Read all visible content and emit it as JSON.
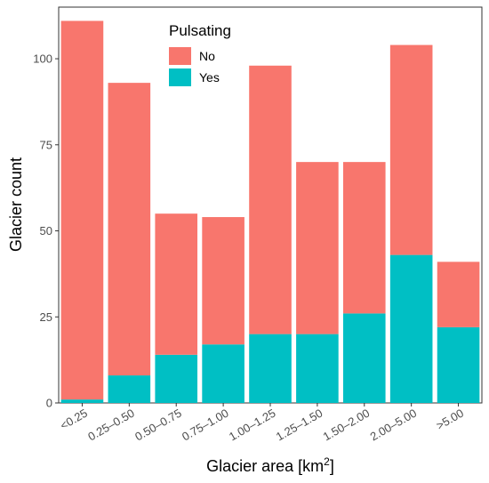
{
  "chart_data": {
    "type": "bar",
    "stacked": true,
    "categories": [
      "<0.25",
      "0.25–0.50",
      "0.50–0.75",
      "0.75–1.00",
      "1.00–1.25",
      "1.25–1.50",
      "1.50–2.00",
      "2.00–5.00",
      ">5.00"
    ],
    "series": [
      {
        "name": "No",
        "color": "#F8766D",
        "values": [
          110,
          85,
          41,
          37,
          78,
          50,
          44,
          61,
          19
        ]
      },
      {
        "name": "Yes",
        "color": "#00BFC4",
        "values": [
          1,
          8,
          14,
          17,
          20,
          20,
          26,
          43,
          22
        ]
      }
    ],
    "xlabel": "Glacier area [km",
    "xlabel_superscript": "2",
    "xlabel_suffix": "]",
    "ylabel": "Glacier count",
    "ylim": [
      0,
      115
    ],
    "yticks": [
      0,
      25,
      50,
      75,
      100
    ],
    "legend": {
      "title": "Pulsating",
      "position": "top-center-left"
    },
    "grid": false
  }
}
